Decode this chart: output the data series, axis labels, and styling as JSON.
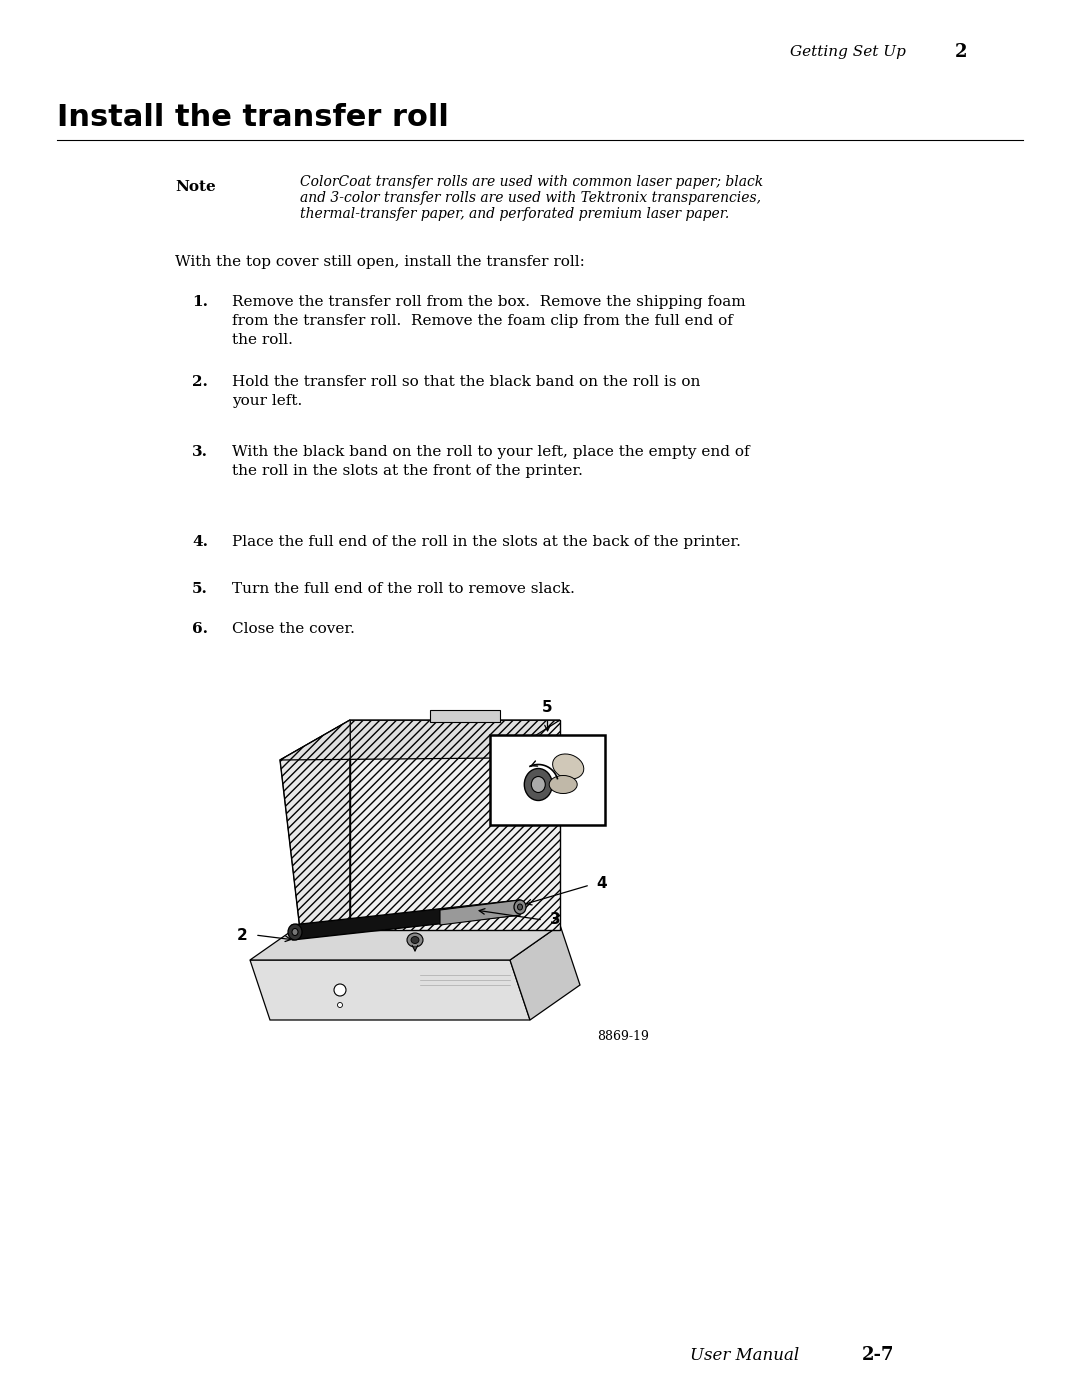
{
  "bg_color": "#ffffff",
  "header_italic": "Getting Set Up",
  "header_bold": "2",
  "section_title": "Install the transfer roll",
  "note_label": "Note",
  "note_line1": "ColorCoat transfer rolls are used with common laser paper; black",
  "note_line2": "and 3-color transfer rolls are used with Tektronix transparencies,",
  "note_line3": "thermal-transfer paper, and perforated premium laser paper.",
  "intro": "With the top cover still open, install the transfer roll:",
  "steps": [
    [
      "1.",
      "Remove the transfer roll from the box.  Remove the shipping foam\nfrom the transfer roll.  Remove the foam clip from the full end of\nthe roll."
    ],
    [
      "2.",
      "Hold the transfer roll so that the black band on the roll is on\nyour left."
    ],
    [
      "3.",
      "With the black band on the roll to your left, place the empty end of\nthe roll in the slots at the front of the printer."
    ],
    [
      "4.",
      "Place the full end of the roll in the slots at the back of the printer."
    ],
    [
      "5.",
      "Turn the full end of the roll to remove slack."
    ],
    [
      "6.",
      "Close the cover."
    ]
  ],
  "fig_label": "8869-19",
  "footer_italic": "User Manual",
  "footer_bold": "2-7"
}
